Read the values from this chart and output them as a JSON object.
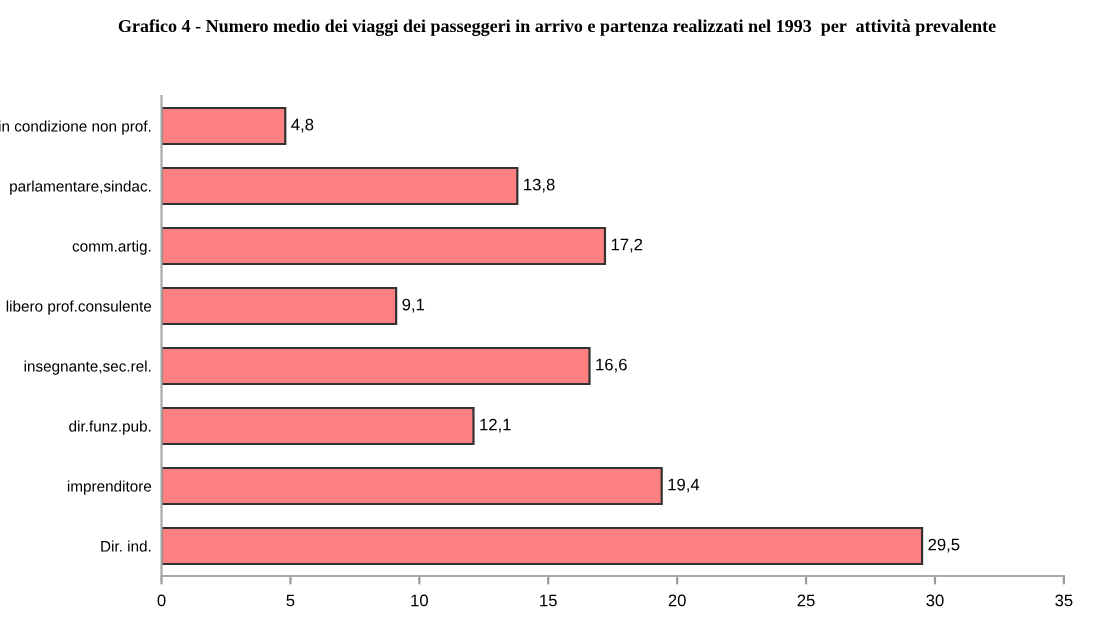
{
  "chart_data": {
    "type": "bar",
    "orientation": "horizontal",
    "title": "Grafico 4 - Numero medio dei viaggi dei passeggeri in arrivo e partenza realizzati nel 1993  per  attività prevalente",
    "categories": [
      "in condizione non prof.",
      "parlamentare,sindac.",
      "comm.artig.",
      "libero prof.consulente",
      "insegnante,sec.rel.",
      "dir.funz.pub.",
      "imprenditore",
      "Dir. ind."
    ],
    "values": [
      4.8,
      13.8,
      17.2,
      9.1,
      16.6,
      12.1,
      19.4,
      29.5
    ],
    "value_labels": [
      "4,8",
      "13,8",
      "17,2",
      "9,1",
      "16,6",
      "12,1",
      "19,4",
      "29,5"
    ],
    "color": "#ff8080",
    "xlim": [
      0,
      35
    ],
    "xticks": [
      0,
      5,
      10,
      15,
      20,
      25,
      30,
      35
    ],
    "grid": false,
    "legend": false
  }
}
